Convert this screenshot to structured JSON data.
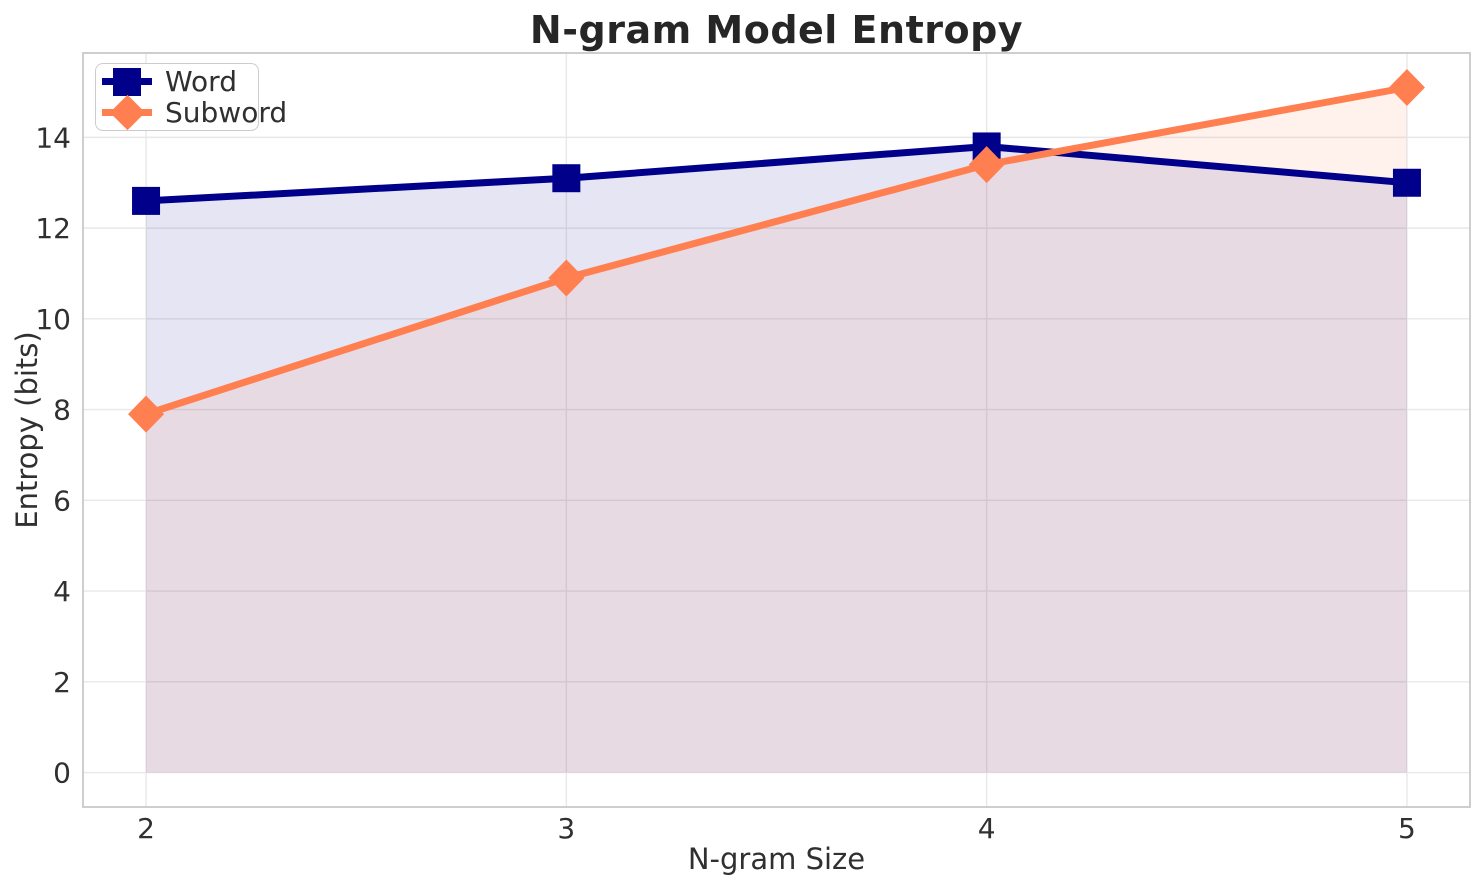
{
  "chart_data": {
    "type": "line",
    "title": "N-gram Model Entropy",
    "xlabel": "N-gram Size",
    "ylabel": "Entropy (bits)",
    "x": [
      2,
      3,
      4,
      5
    ],
    "x_ticks": [
      "2",
      "3",
      "4",
      "5"
    ],
    "y_ticks": [
      0,
      2,
      4,
      6,
      8,
      10,
      12,
      14
    ],
    "xlim": [
      1.85,
      5.15
    ],
    "ylim": [
      -0.76,
      15.86
    ],
    "grid": true,
    "legend_position": "upper left",
    "fill_to_zero": true,
    "fill_alpha": 0.1,
    "series": [
      {
        "name": "Word",
        "marker": "square",
        "color": "#00008B",
        "values": [
          12.6,
          13.1,
          13.8,
          13.0
        ]
      },
      {
        "name": "Subword",
        "marker": "diamond",
        "color": "#FF7F50",
        "values": [
          7.9,
          10.9,
          13.4,
          15.1
        ]
      }
    ],
    "style": {
      "grid_color": "#E8E8E8",
      "spine_color": "#C9C9C9",
      "text_color": "#303030",
      "background": "#FFFFFF"
    }
  }
}
